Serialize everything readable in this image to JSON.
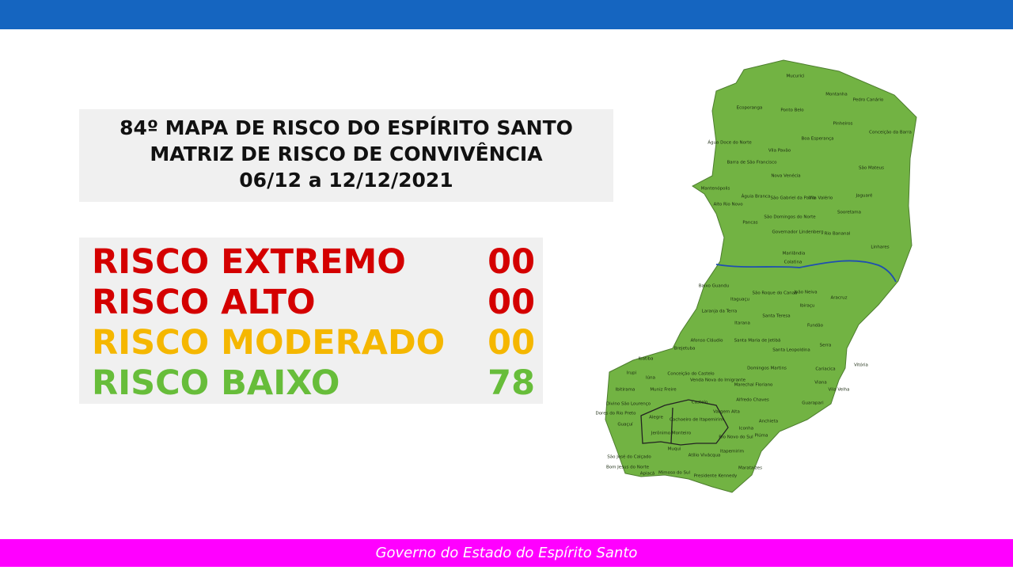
{
  "title": {
    "lines": [
      "84º MAPA DE RISCO DO ESPÍRITO SANTO",
      "MATRIZ DE RISCO DE CONVIVÊNCIA",
      "06/12 a 12/12/2021"
    ]
  },
  "risks": [
    {
      "label": "RISCO EXTREMO",
      "count": "00",
      "color": "#d40000"
    },
    {
      "label": "RISCO ALTO",
      "count": "00",
      "color": "#d40000"
    },
    {
      "label": "RISCO MODERADO",
      "count": "00",
      "color": "#f5b700"
    },
    {
      "label": "RISCO BAIXO",
      "count": "78",
      "color": "#67bd3a"
    }
  ],
  "map": {
    "color": "#72b343",
    "municipalities": [
      "Mucurici",
      "Montanha",
      "Pedro Canário",
      "Ecoporanga",
      "Ponto Belo",
      "Pinheiros",
      "Conceição da Barra",
      "Água Doce do Norte",
      "Boa Esperança",
      "Vila Pavão",
      "Barra de São Francisco",
      "São Mateus",
      "Nova Venécia",
      "Mantenópolis",
      "Águia Branca",
      "São Gabriel da Palha",
      "Vila Valério",
      "Jaguaré",
      "Alto Rio Novo",
      "São Domingos do Norte",
      "Sooretama",
      "Pancas",
      "Governador Lindenberg",
      "Rio Bananal",
      "Linhares",
      "Marilândia",
      "Colatina",
      "Baixo Guandu",
      "São Roque do Canaã",
      "João Neiva",
      "Itaguaçu",
      "Aracruz",
      "Ibiraçu",
      "Laranja da Terra",
      "Santa Teresa",
      "Itarana",
      "Fundão",
      "Afonso Cláudio",
      "Santa Maria de Jetibá",
      "Santa Leopoldina",
      "Serra",
      "Brejetuba",
      "Ibatiba",
      "Domingos Martins",
      "Vitória",
      "Conceição do Castelo",
      "Venda Nova do Imigrante",
      "Cariacica",
      "Iúna",
      "Irupi",
      "Marechal Floriano",
      "Viana",
      "Vila Velha",
      "Ibitirama",
      "Muniz Freire",
      "Alfredo Chaves",
      "Castelo",
      "Guarapari",
      "Dores do Rio Preto",
      "Divino São Lourenço",
      "Vargem Alta",
      "Alegre",
      "Cachoeiro de Itapemirim",
      "Anchieta",
      "Guaçuí",
      "Iconha",
      "Jerônimo Monteiro",
      "Rio Novo do Sul",
      "Piúma",
      "Muqui",
      "Atílio Vivácqua",
      "Itapemirim",
      "São José do Calçado",
      "Bom Jesus do Norte",
      "Apiacá",
      "Mimoso do Sul",
      "Presidente Kennedy",
      "Marataízes"
    ]
  },
  "footer": "Governo do Estado do Espírito Santo"
}
